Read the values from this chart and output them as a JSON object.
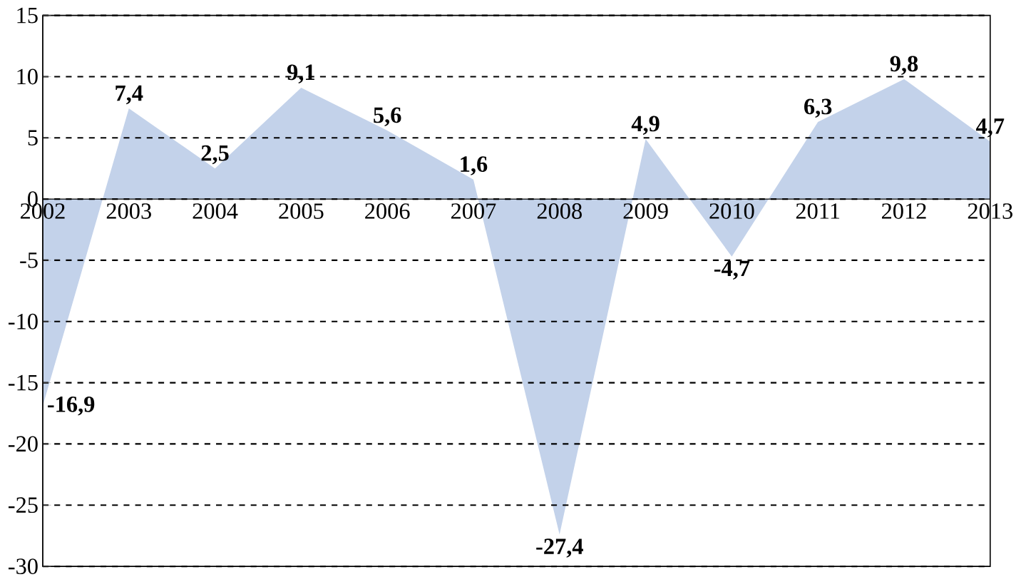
{
  "chart_data": {
    "type": "area",
    "categories": [
      "2002",
      "2003",
      "2004",
      "2005",
      "2006",
      "2007",
      "2008",
      "2009",
      "2010",
      "2011",
      "2012",
      "2013"
    ],
    "series": [
      {
        "color": "#c3d2ea",
        "values": [
          -16.9,
          7.4,
          2.5,
          9.1,
          5.6,
          1.6,
          -27.4,
          4.9,
          -4.7,
          6.3,
          9.8,
          4.7
        ],
        "value_labels": [
          "-16,9",
          "7,4",
          "2,5",
          "9,1",
          "5,6",
          "1,6",
          "-27,4",
          "4,9",
          "-4,7",
          "6,3",
          "9,8",
          "4,7"
        ]
      }
    ],
    "ylim": [
      -30,
      15
    ],
    "yticks": [
      -30,
      -25,
      -20,
      -15,
      -10,
      -5,
      0,
      5,
      10,
      15
    ],
    "grid": "y",
    "line_style": "dashed"
  }
}
